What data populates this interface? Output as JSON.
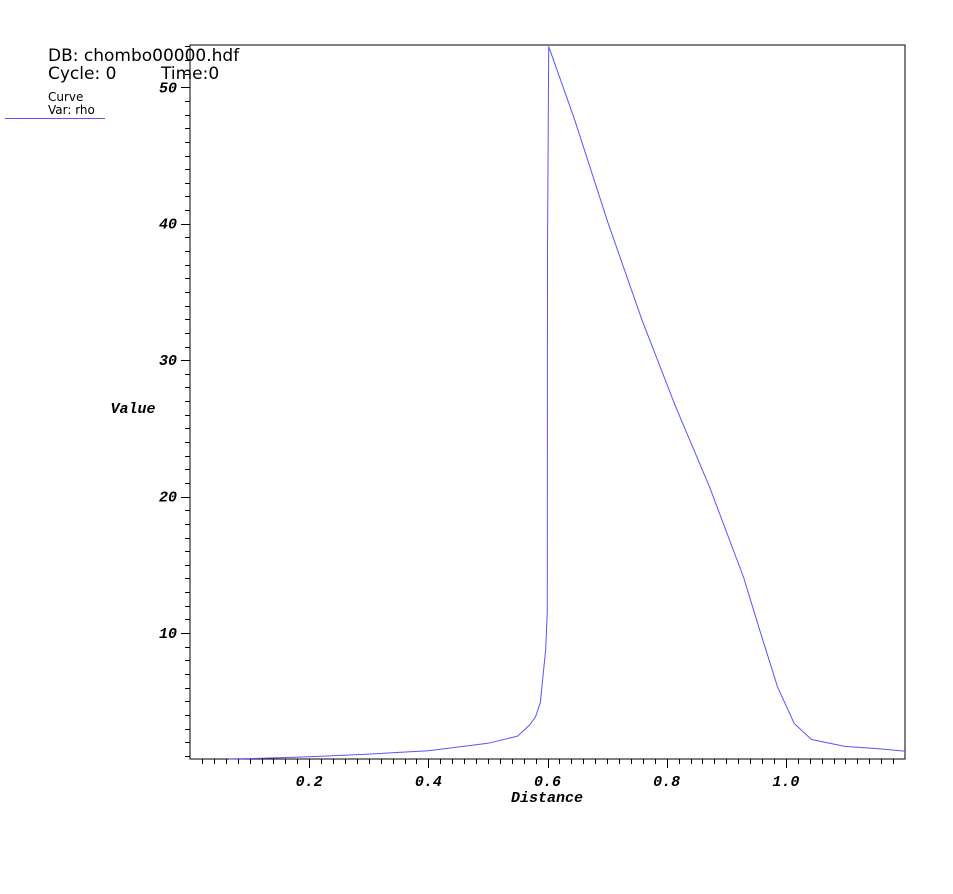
{
  "header": {
    "db": "DB: chombo00000.hdf",
    "cycle": "Cycle: 0",
    "time": "Time:0"
  },
  "legend": {
    "title": "Curve",
    "var": "Var: rho"
  },
  "chart_data": {
    "type": "line",
    "xlabel": "Distance",
    "ylabel": "Value",
    "xlim": [
      0.0,
      1.2
    ],
    "ylim": [
      0.77,
      53.1
    ],
    "xticks": [
      "0.2",
      "0.4",
      "0.6",
      "0.8",
      "1.0"
    ],
    "yticks": [
      "10",
      "20",
      "30",
      "40",
      "50"
    ],
    "grid": false,
    "legend_position": "top-left",
    "series": [
      {
        "name": "Var: rho",
        "color": "#5555ff",
        "x": [
          0.065,
          0.1,
          0.2,
          0.3,
          0.4,
          0.5,
          0.55,
          0.57,
          0.58,
          0.588,
          0.597,
          0.5997,
          0.6,
          0.602,
          0.645,
          0.702,
          0.759,
          0.815,
          0.872,
          0.929,
          0.957,
          0.986,
          1.014,
          1.043,
          1.099,
          1.156,
          1.2
        ],
        "y": [
          0.78,
          0.8,
          0.94,
          1.13,
          1.38,
          1.92,
          2.45,
          3.26,
          3.87,
          4.9,
          8.8,
          11.6,
          38.0,
          53.0,
          47.7,
          40.0,
          32.9,
          26.6,
          20.7,
          14.1,
          10.1,
          6.06,
          3.37,
          2.2,
          1.69,
          1.52,
          1.35
        ]
      }
    ]
  }
}
